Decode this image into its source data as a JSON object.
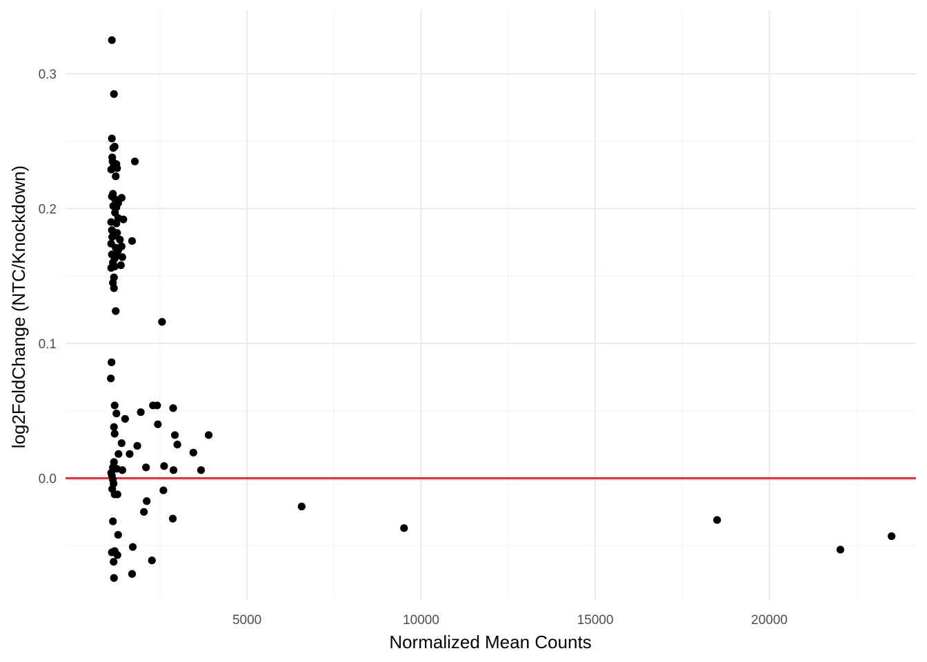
{
  "chart_data": {
    "type": "scatter",
    "title": "",
    "xlabel": "Normalized Mean Counts",
    "ylabel": "log2FoldChange (NTC/Knockdown)",
    "xlim": [
      -211,
      24210
    ],
    "ylim": [
      -0.0903,
      0.3476
    ],
    "x_ticks": [
      5000,
      10000,
      15000,
      20000
    ],
    "x_tick_labels": [
      "5000",
      "10000",
      "15000",
      "20000"
    ],
    "y_ticks": [
      0.0,
      0.1,
      0.2,
      0.3
    ],
    "y_tick_labels": [
      "0.0",
      "0.1",
      "0.2",
      "0.3"
    ],
    "grid": true,
    "reference_line": {
      "y": 0,
      "color": "#e41a1c"
    },
    "point_color": "#000000",
    "points": [
      {
        "x": 1120,
        "y": 0.325
      },
      {
        "x": 1180,
        "y": 0.285
      },
      {
        "x": 1120,
        "y": 0.252
      },
      {
        "x": 1160,
        "y": 0.245
      },
      {
        "x": 1200,
        "y": 0.246
      },
      {
        "x": 1130,
        "y": 0.238
      },
      {
        "x": 1140,
        "y": 0.235
      },
      {
        "x": 1250,
        "y": 0.233
      },
      {
        "x": 1780,
        "y": 0.235
      },
      {
        "x": 1100,
        "y": 0.229
      },
      {
        "x": 1180,
        "y": 0.232
      },
      {
        "x": 1270,
        "y": 0.23
      },
      {
        "x": 1230,
        "y": 0.224
      },
      {
        "x": 1150,
        "y": 0.211
      },
      {
        "x": 1120,
        "y": 0.209
      },
      {
        "x": 1210,
        "y": 0.207
      },
      {
        "x": 1400,
        "y": 0.208
      },
      {
        "x": 1300,
        "y": 0.204
      },
      {
        "x": 1160,
        "y": 0.202
      },
      {
        "x": 1250,
        "y": 0.201
      },
      {
        "x": 1210,
        "y": 0.197
      },
      {
        "x": 1300,
        "y": 0.193
      },
      {
        "x": 1450,
        "y": 0.192
      },
      {
        "x": 1100,
        "y": 0.19
      },
      {
        "x": 1250,
        "y": 0.189
      },
      {
        "x": 1120,
        "y": 0.184
      },
      {
        "x": 1270,
        "y": 0.182
      },
      {
        "x": 1200,
        "y": 0.18
      },
      {
        "x": 1130,
        "y": 0.179
      },
      {
        "x": 1350,
        "y": 0.177
      },
      {
        "x": 1700,
        "y": 0.176
      },
      {
        "x": 1100,
        "y": 0.174
      },
      {
        "x": 1400,
        "y": 0.172
      },
      {
        "x": 1230,
        "y": 0.171
      },
      {
        "x": 1300,
        "y": 0.169
      },
      {
        "x": 1120,
        "y": 0.166
      },
      {
        "x": 1250,
        "y": 0.165
      },
      {
        "x": 1420,
        "y": 0.164
      },
      {
        "x": 1200,
        "y": 0.163
      },
      {
        "x": 1150,
        "y": 0.16
      },
      {
        "x": 1380,
        "y": 0.158
      },
      {
        "x": 1100,
        "y": 0.156
      },
      {
        "x": 1200,
        "y": 0.157
      },
      {
        "x": 1180,
        "y": 0.149
      },
      {
        "x": 1150,
        "y": 0.145
      },
      {
        "x": 1180,
        "y": 0.141
      },
      {
        "x": 1230,
        "y": 0.124
      },
      {
        "x": 2560,
        "y": 0.116
      },
      {
        "x": 1110,
        "y": 0.086
      },
      {
        "x": 1090,
        "y": 0.074
      },
      {
        "x": 1200,
        "y": 0.054
      },
      {
        "x": 2300,
        "y": 0.054
      },
      {
        "x": 2420,
        "y": 0.054
      },
      {
        "x": 2880,
        "y": 0.052
      },
      {
        "x": 1250,
        "y": 0.048
      },
      {
        "x": 1950,
        "y": 0.049
      },
      {
        "x": 1500,
        "y": 0.044
      },
      {
        "x": 2440,
        "y": 0.04
      },
      {
        "x": 1180,
        "y": 0.038
      },
      {
        "x": 1200,
        "y": 0.033
      },
      {
        "x": 3900,
        "y": 0.032
      },
      {
        "x": 2930,
        "y": 0.032
      },
      {
        "x": 1400,
        "y": 0.026
      },
      {
        "x": 1850,
        "y": 0.024
      },
      {
        "x": 3000,
        "y": 0.025
      },
      {
        "x": 3460,
        "y": 0.019
      },
      {
        "x": 1310,
        "y": 0.018
      },
      {
        "x": 1630,
        "y": 0.018
      },
      {
        "x": 1180,
        "y": 0.012
      },
      {
        "x": 2100,
        "y": 0.008
      },
      {
        "x": 2620,
        "y": 0.009
      },
      {
        "x": 1150,
        "y": 0.008
      },
      {
        "x": 1260,
        "y": 0.007
      },
      {
        "x": 1420,
        "y": 0.006
      },
      {
        "x": 2890,
        "y": 0.006
      },
      {
        "x": 3680,
        "y": 0.006
      },
      {
        "x": 1100,
        "y": 0.004
      },
      {
        "x": 1120,
        "y": 0.002
      },
      {
        "x": 1150,
        "y": -0.001
      },
      {
        "x": 1170,
        "y": -0.004
      },
      {
        "x": 1130,
        "y": -0.008
      },
      {
        "x": 2600,
        "y": -0.009
      },
      {
        "x": 1200,
        "y": -0.012
      },
      {
        "x": 1280,
        "y": -0.012
      },
      {
        "x": 2120,
        "y": -0.017
      },
      {
        "x": 6570,
        "y": -0.021
      },
      {
        "x": 2040,
        "y": -0.025
      },
      {
        "x": 2870,
        "y": -0.03
      },
      {
        "x": 1150,
        "y": -0.032
      },
      {
        "x": 18500,
        "y": -0.031
      },
      {
        "x": 9510,
        "y": -0.037
      },
      {
        "x": 1300,
        "y": -0.042
      },
      {
        "x": 23510,
        "y": -0.043
      },
      {
        "x": 1720,
        "y": -0.051
      },
      {
        "x": 22040,
        "y": -0.053
      },
      {
        "x": 1200,
        "y": -0.054
      },
      {
        "x": 1120,
        "y": -0.055
      },
      {
        "x": 1280,
        "y": -0.057
      },
      {
        "x": 2270,
        "y": -0.061
      },
      {
        "x": 1170,
        "y": -0.062
      },
      {
        "x": 1700,
        "y": -0.071
      },
      {
        "x": 1180,
        "y": -0.074
      }
    ]
  }
}
